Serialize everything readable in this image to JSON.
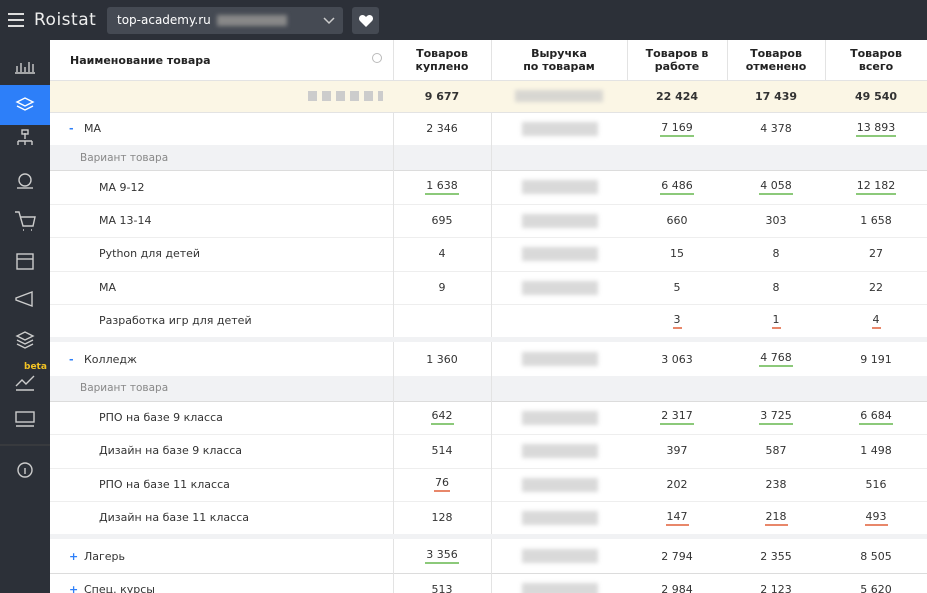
{
  "topbar": {
    "logo": "Roistat",
    "project": "top-academy.ru"
  },
  "sidebar": {
    "badge": "beta"
  },
  "table": {
    "columns": [
      "Наименование товара",
      "Товаров\nкуплено",
      "Выручка\nпо товарам",
      "Товаров в\nработе",
      "Товаров\nотменено",
      "Товаров\nвсего"
    ],
    "total": [
      "9 677",
      "22 424",
      "17 439",
      "49 540"
    ],
    "rows": [
      {
        "kind": "group",
        "toggle": "-",
        "label": "МА",
        "cells": [
          {
            "text": "2 346"
          },
          {
            "text": "7 169",
            "underline": "green"
          },
          {
            "text": "4 378"
          },
          {
            "text": "13 893",
            "underline": "green"
          }
        ]
      },
      {
        "kind": "sub",
        "label": "Вариант товара"
      },
      {
        "kind": "item",
        "label": "МА 9-12",
        "cells": [
          {
            "text": "1 638",
            "underline": "green"
          },
          {
            "text": "6 486",
            "underline": "green"
          },
          {
            "text": "4 058",
            "underline": "green"
          },
          {
            "text": "12 182",
            "underline": "green"
          }
        ]
      },
      {
        "kind": "item",
        "label": "МА 13-14",
        "cells": [
          {
            "text": "695"
          },
          {
            "text": "660"
          },
          {
            "text": "303"
          },
          {
            "text": "1 658"
          }
        ]
      },
      {
        "kind": "item",
        "label": "Python для детей",
        "cells": [
          {
            "text": "4"
          },
          {
            "text": "15"
          },
          {
            "text": "8"
          },
          {
            "text": "27"
          }
        ]
      },
      {
        "kind": "item",
        "label": "МА",
        "cells": [
          {
            "text": "9"
          },
          {
            "text": "5"
          },
          {
            "text": "8"
          },
          {
            "text": "22"
          }
        ]
      },
      {
        "kind": "item",
        "label": "Разработка игр для детей",
        "cells": [
          {
            "text": null
          },
          {
            "text": "3",
            "underline": "red"
          },
          {
            "text": "1",
            "underline": "red"
          },
          {
            "text": "4",
            "underline": "red"
          }
        ]
      },
      {
        "kind": "group",
        "toggle": "-",
        "label": "Колледж",
        "cells": [
          {
            "text": "1 360"
          },
          {
            "text": "3 063"
          },
          {
            "text": "4 768",
            "underline": "green"
          },
          {
            "text": "9 191"
          }
        ]
      },
      {
        "kind": "sub",
        "label": "Вариант товара"
      },
      {
        "kind": "item",
        "label": "РПО на базе 9 класса",
        "cells": [
          {
            "text": "642",
            "underline": "green"
          },
          {
            "text": "2 317",
            "underline": "green"
          },
          {
            "text": "3 725",
            "underline": "green"
          },
          {
            "text": "6 684",
            "underline": "green"
          }
        ]
      },
      {
        "kind": "item",
        "label": "Дизайн на базе 9 класса",
        "cells": [
          {
            "text": "514"
          },
          {
            "text": "397"
          },
          {
            "text": "587"
          },
          {
            "text": "1 498"
          }
        ]
      },
      {
        "kind": "item",
        "label": "РПО на базе 11 класса",
        "cells": [
          {
            "text": "76",
            "underline": "red"
          },
          {
            "text": "202"
          },
          {
            "text": "238"
          },
          {
            "text": "516"
          }
        ]
      },
      {
        "kind": "item",
        "label": "Дизайн на базе 11 класса",
        "cells": [
          {
            "text": "128"
          },
          {
            "text": "147",
            "underline": "red"
          },
          {
            "text": "218",
            "underline": "red"
          },
          {
            "text": "493",
            "underline": "red"
          }
        ]
      },
      {
        "kind": "group",
        "toggle": "+",
        "label": "Лагерь",
        "cells": [
          {
            "text": "3 356",
            "underline": "green"
          },
          {
            "text": "2 794"
          },
          {
            "text": "2 355"
          },
          {
            "text": "8 505"
          }
        ]
      },
      {
        "kind": "group",
        "toggle": "+",
        "label": "Спец. курсы",
        "cells": [
          {
            "text": "513"
          },
          {
            "text": "2 984"
          },
          {
            "text": "2 123"
          },
          {
            "text": "5 620"
          }
        ]
      }
    ]
  }
}
